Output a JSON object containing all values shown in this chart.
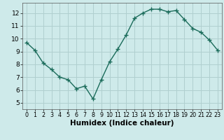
{
  "x": [
    0,
    1,
    2,
    3,
    4,
    5,
    6,
    7,
    8,
    9,
    10,
    11,
    12,
    13,
    14,
    15,
    16,
    17,
    18,
    19,
    20,
    21,
    22,
    23
  ],
  "y": [
    9.7,
    9.1,
    8.1,
    7.6,
    7.0,
    6.8,
    6.1,
    6.3,
    5.3,
    6.8,
    8.2,
    9.2,
    10.3,
    11.6,
    12.0,
    12.3,
    12.3,
    12.1,
    12.2,
    11.5,
    10.8,
    10.5,
    9.9,
    9.1
  ],
  "line_color": "#1a6b5a",
  "marker": "+",
  "marker_size": 5,
  "line_width": 1.0,
  "xlabel": "Humidex (Indice chaleur)",
  "xlabel_fontsize": 7.5,
  "bg_color": "#ceeaea",
  "grid_color": "#b0cfcf",
  "xlim": [
    -0.5,
    23.5
  ],
  "ylim": [
    4.5,
    12.8
  ],
  "yticks": [
    5,
    6,
    7,
    8,
    9,
    10,
    11,
    12
  ],
  "xticks": [
    0,
    1,
    2,
    3,
    4,
    5,
    6,
    7,
    8,
    9,
    10,
    11,
    12,
    13,
    14,
    15,
    16,
    17,
    18,
    19,
    20,
    21,
    22,
    23
  ],
  "tick_fontsize": 6.5,
  "xtick_fontsize": 5.8
}
